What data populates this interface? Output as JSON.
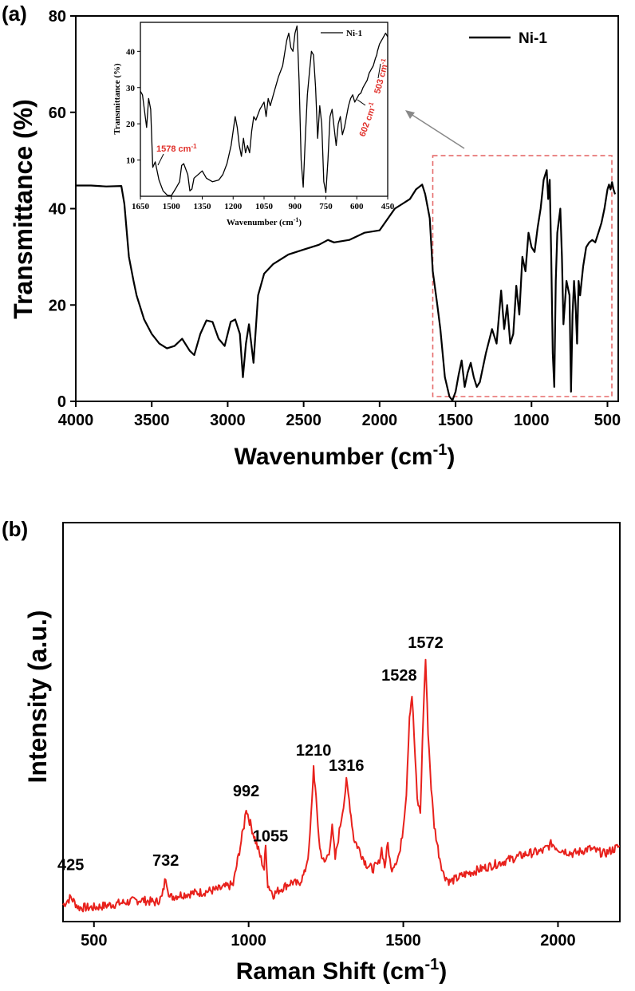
{
  "figure": {
    "panel_a_label": "(a)",
    "panel_b_label": "(b)"
  },
  "chart_data": [
    {
      "id": "ftir",
      "type": "line",
      "xlabel": "Wavenumber (cm",
      "xlabel_sup": "-1",
      "xlabel_close": ")",
      "ylabel": "Transmittance (%)",
      "xlim": [
        4000,
        450
      ],
      "ylim": [
        0,
        80
      ],
      "xticks": [
        4000,
        3500,
        3000,
        2500,
        2000,
        1500,
        1000,
        500
      ],
      "yticks": [
        0,
        20,
        40,
        60,
        80
      ],
      "legend": "Ni-1",
      "legend_placement": "top-right",
      "color": "#000000",
      "highlight_region": {
        "x": [
          1650,
          450
        ],
        "y": [
          0,
          51
        ],
        "color": "#e56b6b"
      },
      "series": [
        {
          "name": "Ni-1",
          "x": [
            4000,
            3900,
            3800,
            3700,
            3680,
            3650,
            3620,
            3600,
            3550,
            3500,
            3450,
            3400,
            3350,
            3300,
            3250,
            3220,
            3180,
            3140,
            3100,
            3060,
            3020,
            2980,
            2950,
            2920,
            2900,
            2880,
            2860,
            2830,
            2800,
            2760,
            2700,
            2600,
            2500,
            2400,
            2340,
            2300,
            2200,
            2100,
            2000,
            1900,
            1850,
            1800,
            1760,
            1720,
            1700,
            1670,
            1650,
            1620,
            1600,
            1570,
            1540,
            1520,
            1500,
            1480,
            1460,
            1440,
            1420,
            1400,
            1380,
            1360,
            1340,
            1300,
            1260,
            1230,
            1200,
            1180,
            1160,
            1140,
            1120,
            1100,
            1080,
            1060,
            1040,
            1020,
            1000,
            980,
            960,
            940,
            920,
            900,
            890,
            880,
            870,
            860,
            850,
            840,
            830,
            810,
            800,
            790,
            770,
            750,
            740,
            730,
            720,
            710,
            700,
            690,
            680,
            660,
            640,
            620,
            600,
            580,
            560,
            540,
            520,
            510,
            500,
            490,
            480,
            470,
            460,
            450
          ],
          "y": [
            44.8,
            44.8,
            44.6,
            44.7,
            41,
            30,
            25,
            22,
            17,
            14,
            12,
            11,
            11.5,
            13,
            10.5,
            9.6,
            14,
            16.8,
            16.5,
            13,
            11.5,
            16.5,
            17,
            14,
            5,
            12,
            16,
            8,
            22,
            26.5,
            28.5,
            30.5,
            31.5,
            32.5,
            33.5,
            33,
            33.5,
            35,
            35.5,
            40,
            41,
            42,
            44,
            45,
            43,
            38,
            27,
            20,
            15,
            5,
            1,
            0.2,
            2,
            5.5,
            8.5,
            3,
            6,
            8,
            5,
            3,
            4,
            10,
            15,
            12,
            23,
            15,
            20,
            12,
            14,
            24,
            18,
            30,
            27,
            35,
            32,
            31,
            36,
            40,
            46,
            48,
            42,
            46,
            30,
            10,
            3,
            25,
            35,
            40,
            30,
            16,
            25,
            22,
            2,
            18,
            25,
            20,
            12,
            25,
            22,
            28,
            32,
            33,
            33.5,
            33,
            35,
            37,
            40,
            42,
            44,
            45,
            44,
            45.5,
            44,
            43
          ]
        }
      ]
    },
    {
      "id": "ftir-inset",
      "type": "line",
      "xlabel": "Wavenumber (cm",
      "xlabel_sup": "-1",
      "xlabel_close": ")",
      "ylabel": "Transmittance (%)",
      "xlim": [
        1650,
        450
      ],
      "ylim": [
        0,
        48
      ],
      "xticks": [
        1650,
        1500,
        1350,
        1200,
        1050,
        900,
        750,
        600,
        450
      ],
      "yticks": [
        10,
        20,
        30,
        40
      ],
      "legend": "Ni-1",
      "legend_placement": "top-right",
      "color": "#000000",
      "annotations": [
        {
          "text": "1578 cm",
          "sup": "-1"
        },
        {
          "text": "602 cm",
          "sup": "-1"
        },
        {
          "text": "503 cm",
          "sup": "-1"
        }
      ],
      "series": [
        {
          "name": "Ni-1",
          "x": [
            1650,
            1640,
            1620,
            1610,
            1600,
            1590,
            1578,
            1560,
            1540,
            1520,
            1500,
            1480,
            1460,
            1450,
            1440,
            1420,
            1410,
            1400,
            1390,
            1370,
            1350,
            1330,
            1300,
            1270,
            1250,
            1230,
            1210,
            1190,
            1180,
            1170,
            1160,
            1150,
            1140,
            1130,
            1120,
            1110,
            1100,
            1090,
            1070,
            1050,
            1040,
            1030,
            1020,
            1000,
            980,
            960,
            940,
            930,
            920,
            910,
            900,
            890,
            880,
            870,
            860,
            850,
            840,
            830,
            820,
            810,
            800,
            790,
            780,
            770,
            760,
            750,
            740,
            730,
            720,
            710,
            700,
            690,
            680,
            670,
            660,
            650,
            640,
            630,
            620,
            610,
            600,
            590,
            580,
            570,
            560,
            550,
            540,
            530,
            520,
            510,
            503,
            500,
            490,
            480,
            470,
            460,
            450
          ],
          "y": [
            29,
            28,
            19,
            27,
            24,
            8,
            9.5,
            4.5,
            1.5,
            0.3,
            0.2,
            2,
            4,
            8.5,
            9,
            6,
            1.5,
            2,
            5,
            6,
            7,
            5,
            4,
            4.5,
            6,
            9,
            14,
            22,
            19,
            14,
            11,
            16,
            12,
            14,
            12,
            18,
            22,
            21,
            24,
            26,
            22,
            27,
            25,
            29,
            33,
            36,
            43,
            45,
            41,
            40,
            45,
            47,
            32,
            10,
            2.5,
            16,
            28,
            34,
            40,
            39,
            30,
            16,
            25,
            20,
            4,
            1,
            10,
            22,
            24,
            19,
            14,
            20,
            22,
            17,
            19,
            22,
            25,
            27,
            28,
            26,
            27,
            28,
            28.5,
            30,
            31,
            32,
            34,
            35,
            36,
            38,
            39,
            40,
            42,
            43,
            44,
            45,
            44
          ]
        }
      ]
    },
    {
      "id": "raman",
      "type": "line",
      "xlabel": "Raman Shift (cm",
      "xlabel_sup": "-1",
      "xlabel_close": ")",
      "ylabel": "Intensity (a.u.)",
      "xlim": [
        400,
        2200
      ],
      "ylim": [
        0,
        1
      ],
      "xticks": [
        500,
        1000,
        1500,
        2000
      ],
      "color": "#e8211c",
      "peak_labels": [
        {
          "x": 425,
          "label": "425"
        },
        {
          "x": 732,
          "label": "732"
        },
        {
          "x": 992,
          "label": "992"
        },
        {
          "x": 1055,
          "label": "1055"
        },
        {
          "x": 1210,
          "label": "1210"
        },
        {
          "x": 1316,
          "label": "1316"
        },
        {
          "x": 1528,
          "label": "1528"
        },
        {
          "x": 1572,
          "label": "1572"
        }
      ],
      "series": [
        {
          "name": "",
          "x": [
            400,
            425,
            450,
            500,
            550,
            600,
            650,
            700,
            720,
            732,
            745,
            780,
            850,
            900,
            950,
            970,
            985,
            992,
            1000,
            1020,
            1040,
            1050,
            1055,
            1062,
            1080,
            1100,
            1140,
            1160,
            1180,
            1195,
            1205,
            1210,
            1218,
            1230,
            1245,
            1260,
            1270,
            1280,
            1290,
            1300,
            1310,
            1316,
            1325,
            1340,
            1360,
            1380,
            1400,
            1420,
            1430,
            1440,
            1450,
            1460,
            1470,
            1480,
            1490,
            1500,
            1510,
            1520,
            1528,
            1535,
            1545,
            1555,
            1565,
            1572,
            1580,
            1590,
            1600,
            1615,
            1630,
            1650,
            1700,
            1750,
            1800,
            1850,
            1900,
            1950,
            1980,
            2000,
            2050,
            2100,
            2150,
            2200
          ],
          "y": [
            0.04,
            0.07,
            0.03,
            0.03,
            0.04,
            0.05,
            0.06,
            0.05,
            0.07,
            0.15,
            0.07,
            0.08,
            0.09,
            0.1,
            0.12,
            0.25,
            0.35,
            0.42,
            0.38,
            0.3,
            0.22,
            0.18,
            0.27,
            0.12,
            0.08,
            0.1,
            0.13,
            0.12,
            0.16,
            0.25,
            0.45,
            0.58,
            0.45,
            0.26,
            0.2,
            0.25,
            0.34,
            0.22,
            0.3,
            0.38,
            0.46,
            0.52,
            0.45,
            0.3,
            0.25,
            0.2,
            0.18,
            0.2,
            0.26,
            0.19,
            0.28,
            0.18,
            0.2,
            0.22,
            0.25,
            0.35,
            0.48,
            0.78,
            0.86,
            0.7,
            0.45,
            0.4,
            0.8,
            1.0,
            0.72,
            0.5,
            0.35,
            0.24,
            0.16,
            0.13,
            0.16,
            0.18,
            0.2,
            0.22,
            0.24,
            0.25,
            0.28,
            0.26,
            0.24,
            0.26,
            0.24,
            0.27
          ]
        }
      ]
    }
  ]
}
